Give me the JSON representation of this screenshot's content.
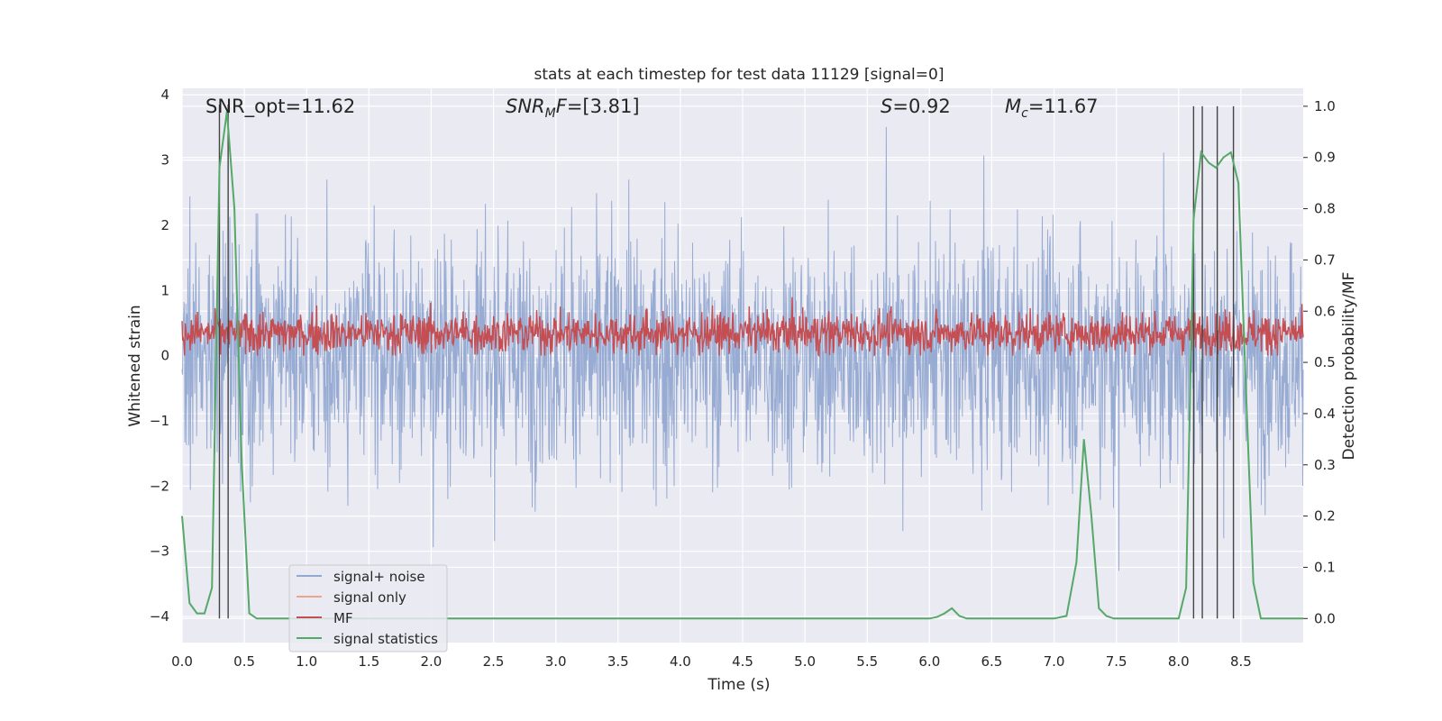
{
  "chart_data": {
    "type": "line",
    "title": "stats at each timestep for test data 11129 [signal=0]",
    "xlabel": "Time (s)",
    "ylabel_left": "Whitened strain",
    "ylabel_right": "Detection probability/MF",
    "xlim": [
      0.0,
      9.0
    ],
    "ylim_left": [
      -4.4,
      4.1
    ],
    "ylim_right": [
      -0.047,
      1.035
    ],
    "xticks": [
      "0.0",
      "0.5",
      "1.0",
      "1.5",
      "2.0",
      "2.5",
      "3.0",
      "3.5",
      "4.0",
      "4.5",
      "5.0",
      "5.5",
      "6.0",
      "6.5",
      "7.0",
      "7.5",
      "8.0",
      "8.5"
    ],
    "yticks_left": [
      "−4",
      "−3",
      "−2",
      "−1",
      "0",
      "1",
      "2",
      "3",
      "4"
    ],
    "yticks_right": [
      "0.0",
      "0.1",
      "0.2",
      "0.3",
      "0.4",
      "0.5",
      "0.6",
      "0.7",
      "0.8",
      "0.9",
      "1.0"
    ],
    "grid": true,
    "legend_position": "lower-left",
    "annotations": {
      "snr_opt": "SNR_opt=11.62",
      "snr_mf": "=[3.81]",
      "snr_mf_sym": "SNR",
      "snr_mf_sub": "M",
      "snr_mf_tail": "F",
      "s_val": "=0.92",
      "s_sym": "S",
      "mc_val": "=11.67",
      "mc_sym": "M",
      "mc_sub": "c"
    },
    "legend": [
      {
        "label": "signal+ noise",
        "color": "#92a8d1"
      },
      {
        "label": "signal only",
        "color": "#e9a68c"
      },
      {
        "label": "MF",
        "color": "#c44e52"
      },
      {
        "label": "signal statistics",
        "color": "#55a868"
      }
    ],
    "series": [
      {
        "name": "signal+ noise",
        "axis": "left",
        "color": "#92a8d1",
        "description_values": {
          "mean": 0.0,
          "std": 0.9,
          "peak_max": 3.8,
          "peak_min": -3.3
        }
      },
      {
        "name": "MF",
        "axis": "left",
        "color": "#c44e52",
        "description_values": {
          "mean": 0.35,
          "range": [
            0.0,
            0.95
          ]
        }
      },
      {
        "name": "signal statistics",
        "axis": "right",
        "color": "#55a868",
        "x": [
          0.0,
          0.06,
          0.12,
          0.18,
          0.24,
          0.3,
          0.36,
          0.42,
          0.48,
          0.54,
          0.6,
          1.0,
          2.0,
          3.0,
          4.0,
          5.0,
          6.0,
          6.06,
          6.12,
          6.18,
          6.24,
          6.3,
          6.5,
          7.0,
          7.1,
          7.18,
          7.24,
          7.3,
          7.36,
          7.42,
          7.48,
          7.54,
          7.6,
          8.0,
          8.06,
          8.12,
          8.18,
          8.24,
          8.3,
          8.36,
          8.42,
          8.48,
          8.54,
          8.6,
          8.66,
          8.72,
          8.8,
          9.0
        ],
        "values": [
          0.2,
          0.03,
          0.01,
          0.01,
          0.06,
          0.88,
          0.99,
          0.8,
          0.3,
          0.01,
          0.0,
          0.0,
          0.0,
          0.0,
          0.0,
          0.0,
          0.0,
          0.003,
          0.01,
          0.02,
          0.005,
          0.0,
          0.0,
          0.0,
          0.005,
          0.11,
          0.35,
          0.2,
          0.02,
          0.005,
          0.0,
          0.0,
          0.0,
          0.0,
          0.06,
          0.78,
          0.91,
          0.89,
          0.88,
          0.9,
          0.91,
          0.85,
          0.45,
          0.07,
          0.0,
          0.0,
          0.0,
          0.0
        ]
      }
    ],
    "vertical_markers_x": [
      0.3,
      0.37,
      8.12,
      8.19,
      8.31,
      8.44
    ]
  }
}
